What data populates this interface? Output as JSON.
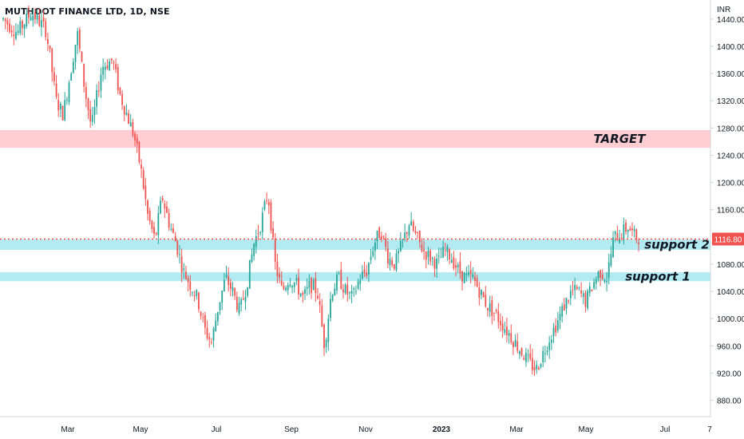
{
  "symbol_title": "MUTHOOT FINANCE LTD, 1D, NSE",
  "currency": "INR",
  "colors": {
    "up": "#26a69a",
    "down": "#ef5350",
    "target_zone": "#ffcdd2",
    "support_zone": "#b2ebf2",
    "last_price_line": "#ef5350",
    "axis_text": "#131722"
  },
  "chart_data": {
    "type": "candlestick",
    "ylim": [
      856,
      1468
    ],
    "y_ticks": [
      "1440.00",
      "1400.00",
      "1360.00",
      "1320.00",
      "1280.00",
      "1240.00",
      "1200.00",
      "1160.00",
      "1080.00",
      "1040.00",
      "1000.00",
      "960.00",
      "920.00",
      "880.00"
    ],
    "x_ticks": [
      {
        "label": "Mar",
        "bold": false
      },
      {
        "label": "May",
        "bold": false
      },
      {
        "label": "Jul",
        "bold": false
      },
      {
        "label": "Sep",
        "bold": false
      },
      {
        "label": "Nov",
        "bold": false
      },
      {
        "label": "2023",
        "bold": true
      },
      {
        "label": "Mar",
        "bold": false
      },
      {
        "label": "May",
        "bold": false
      },
      {
        "label": "Jul",
        "bold": false
      },
      {
        "label": "7",
        "bold": false
      }
    ],
    "last_price": "1116.80",
    "last_price_value": 1116.8,
    "zones": [
      {
        "name": "TARGET",
        "from": 1251,
        "to": 1277,
        "kind": "target"
      },
      {
        "name": "support 2",
        "from": 1101,
        "to": 1116,
        "kind": "support"
      },
      {
        "name": "support 1",
        "from": 1055,
        "to": 1068,
        "kind": "support"
      }
    ],
    "price_path": [
      [
        0.0,
        1440
      ],
      [
        0.02,
        1420
      ],
      [
        0.04,
        1450
      ],
      [
        0.06,
        1425
      ],
      [
        0.065,
        1395
      ],
      [
        0.075,
        1320
      ],
      [
        0.085,
        1300
      ],
      [
        0.095,
        1360
      ],
      [
        0.105,
        1420
      ],
      [
        0.115,
        1340
      ],
      [
        0.125,
        1280
      ],
      [
        0.14,
        1370
      ],
      [
        0.155,
        1380
      ],
      [
        0.165,
        1330
      ],
      [
        0.175,
        1300
      ],
      [
        0.185,
        1270
      ],
      [
        0.195,
        1220
      ],
      [
        0.205,
        1150
      ],
      [
        0.215,
        1115
      ],
      [
        0.225,
        1180
      ],
      [
        0.235,
        1140
      ],
      [
        0.245,
        1110
      ],
      [
        0.255,
        1070
      ],
      [
        0.265,
        1050
      ],
      [
        0.275,
        1030
      ],
      [
        0.285,
        985
      ],
      [
        0.295,
        965
      ],
      [
        0.305,
        1020
      ],
      [
        0.315,
        1060
      ],
      [
        0.325,
        1040
      ],
      [
        0.335,
        1010
      ],
      [
        0.345,
        1050
      ],
      [
        0.355,
        1110
      ],
      [
        0.365,
        1140
      ],
      [
        0.375,
        1185
      ],
      [
        0.385,
        1080
      ],
      [
        0.395,
        1040
      ],
      [
        0.405,
        1060
      ],
      [
        0.415,
        1050
      ],
      [
        0.425,
        1030
      ],
      [
        0.435,
        1050
      ],
      [
        0.445,
        1040
      ],
      [
        0.455,
        960
      ],
      [
        0.465,
        1040
      ],
      [
        0.475,
        1060
      ],
      [
        0.485,
        1040
      ],
      [
        0.495,
        1030
      ],
      [
        0.505,
        1060
      ],
      [
        0.515,
        1070
      ],
      [
        0.525,
        1110
      ],
      [
        0.535,
        1130
      ],
      [
        0.545,
        1090
      ],
      [
        0.555,
        1080
      ],
      [
        0.565,
        1110
      ],
      [
        0.575,
        1140
      ],
      [
        0.585,
        1120
      ],
      [
        0.595,
        1100
      ],
      [
        0.605,
        1090
      ],
      [
        0.615,
        1080
      ],
      [
        0.625,
        1100
      ],
      [
        0.635,
        1090
      ],
      [
        0.645,
        1070
      ],
      [
        0.655,
        1060
      ],
      [
        0.665,
        1060
      ],
      [
        0.675,
        1040
      ],
      [
        0.685,
        1020
      ],
      [
        0.695,
        1010
      ],
      [
        0.705,
        995
      ],
      [
        0.715,
        980
      ],
      [
        0.725,
        965
      ],
      [
        0.735,
        950
      ],
      [
        0.745,
        935
      ],
      [
        0.755,
        925
      ],
      [
        0.765,
        950
      ],
      [
        0.775,
        975
      ],
      [
        0.785,
        995
      ],
      [
        0.795,
        1020
      ],
      [
        0.805,
        1040
      ],
      [
        0.815,
        1040
      ],
      [
        0.825,
        1025
      ],
      [
        0.835,
        1050
      ],
      [
        0.845,
        1070
      ],
      [
        0.855,
        1060
      ],
      [
        0.865,
        1120
      ],
      [
        0.875,
        1125
      ],
      [
        0.885,
        1135
      ],
      [
        0.895,
        1120
      ]
    ]
  }
}
